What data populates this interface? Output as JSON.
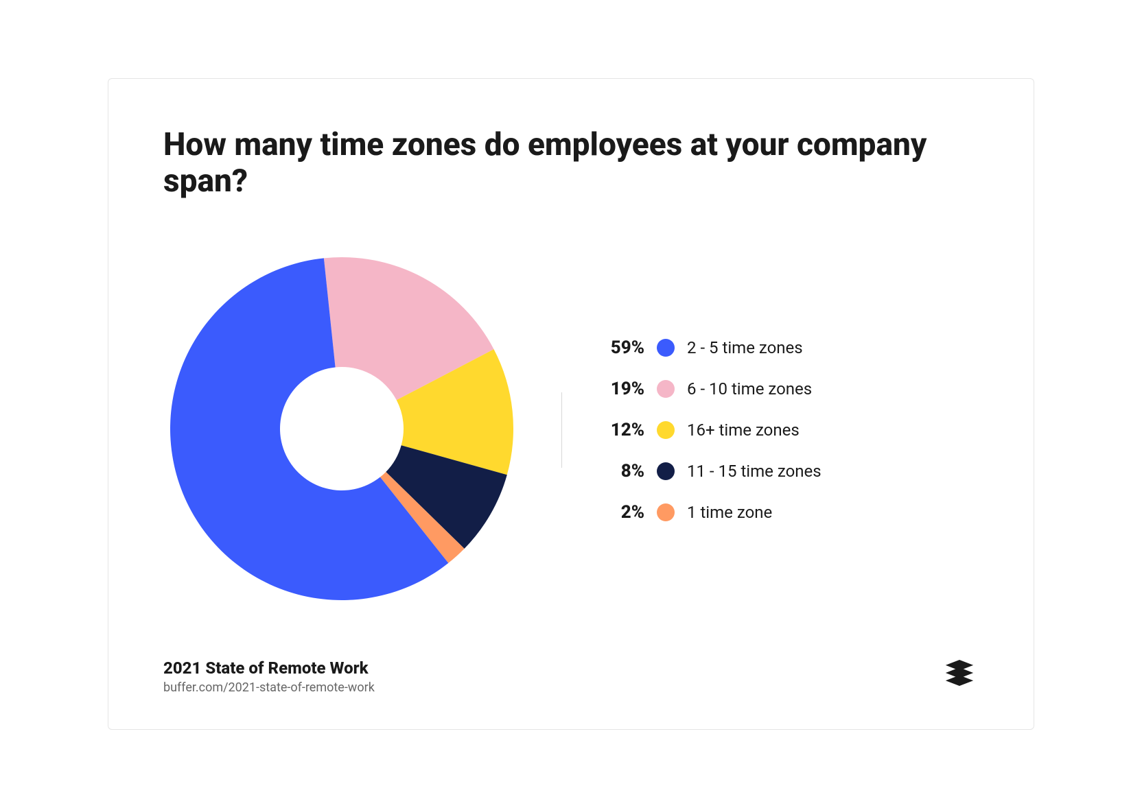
{
  "title": "How many time zones do employees at your company span?",
  "chart": {
    "type": "donut",
    "background_color": "#ffffff",
    "start_angle_deg": -6,
    "direction": "clockwise",
    "outer_radius": 250,
    "inner_radius": 90,
    "size": 520,
    "slices": [
      {
        "label": "6 - 10 time zones",
        "value": 19,
        "color": "#f5b6c7"
      },
      {
        "label": "16+ time zones",
        "value": 12,
        "color": "#ffd92e"
      },
      {
        "label": "11 - 15 time zones",
        "value": 8,
        "color": "#121e47"
      },
      {
        "label": "1 time zone",
        "value": 2,
        "color": "#ff9a62"
      },
      {
        "label": "2 - 5 time zones",
        "value": 59,
        "color": "#3b5bfd"
      }
    ],
    "legend_order": [
      {
        "label": "2 - 5 time zones",
        "value": 59,
        "pct": "59%",
        "color": "#3b5bfd"
      },
      {
        "label": "6 - 10 time zones",
        "value": 19,
        "pct": "19%",
        "color": "#f5b6c7"
      },
      {
        "label": "16+ time zones",
        "value": 12,
        "pct": "12%",
        "color": "#ffd92e"
      },
      {
        "label": "11 - 15 time zones",
        "value": 8,
        "pct": "8%",
        "color": "#121e47"
      },
      {
        "label": "1 time zone",
        "value": 2,
        "pct": "2%",
        "color": "#ff9a62"
      }
    ],
    "legend": {
      "swatch_radius": 13,
      "pct_fontsize": 26,
      "label_fontsize": 24,
      "row_gap": 30,
      "divider_color": "#d8d8d8"
    }
  },
  "title_style": {
    "fontsize": 46,
    "fontweight": 800,
    "color": "#1a1a1a"
  },
  "footer": {
    "title": "2021 State of Remote Work",
    "subtitle": "buffer.com/2021-state-of-remote-work",
    "title_fontsize": 24,
    "subtitle_fontsize": 18,
    "subtitle_color": "#666666",
    "logo_color": "#1a1a1a",
    "logo_size": 56
  }
}
